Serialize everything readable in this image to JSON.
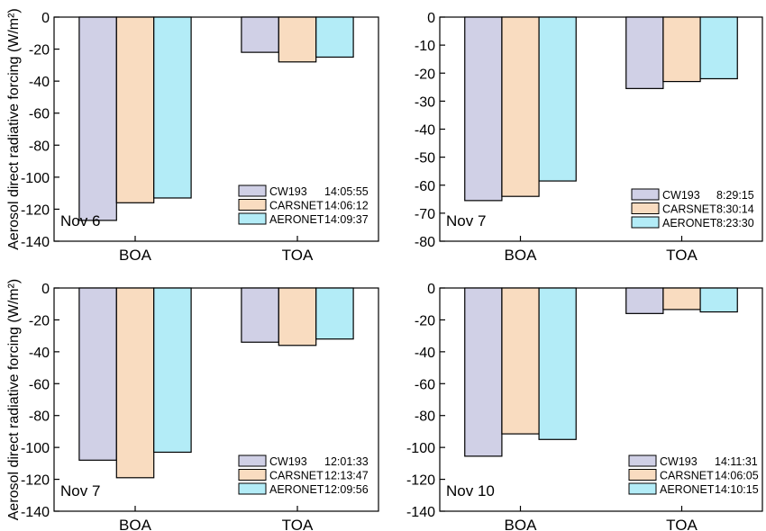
{
  "figure": {
    "ylabel_left_top": "Aerosol direct radiative forcing (W/m²)",
    "ylabel_left_bottom": "Aerosol direct radiative forcing (W/m²)"
  },
  "colors": {
    "CW193": "#d0d0e6",
    "CARSNET": "#f9dcc0",
    "AERONET": "#b3ecf7",
    "edge": "#000000"
  },
  "chart_data": [
    {
      "type": "bar",
      "annotation": "Nov 6",
      "categories": [
        "BOA",
        "TOA"
      ],
      "ylim": [
        -140,
        0
      ],
      "yticks": [
        0,
        -20,
        -40,
        -60,
        -80,
        -100,
        -120,
        -140
      ],
      "ylabel": "Aerosol direct radiative forcing (W/m²)",
      "series": [
        {
          "name": "CW193",
          "time": "14:05:55",
          "values": [
            -127,
            -22
          ]
        },
        {
          "name": "CARSNET",
          "time": "14:06:12",
          "values": [
            -116,
            -28
          ]
        },
        {
          "name": "AERONET",
          "time": "14:09:37",
          "values": [
            -113,
            -25
          ]
        }
      ]
    },
    {
      "type": "bar",
      "annotation": "Nov 7",
      "categories": [
        "BOA",
        "TOA"
      ],
      "ylim": [
        -80,
        0
      ],
      "yticks": [
        0,
        -10,
        -20,
        -30,
        -40,
        -50,
        -60,
        -70,
        -80
      ],
      "ylabel": "",
      "series": [
        {
          "name": "CW193",
          "time": "8:29:15",
          "values": [
            -65.5,
            -25.5
          ]
        },
        {
          "name": "CARSNET",
          "time": "8:30:14",
          "values": [
            -64,
            -23
          ]
        },
        {
          "name": "AERONET",
          "time": "8:23:30",
          "values": [
            -58.5,
            -22
          ]
        }
      ]
    },
    {
      "type": "bar",
      "annotation": "Nov 7",
      "categories": [
        "BOA",
        "TOA"
      ],
      "ylim": [
        -140,
        0
      ],
      "yticks": [
        0,
        -20,
        -40,
        -60,
        -80,
        -100,
        -120,
        -140
      ],
      "ylabel": "Aerosol direct radiative forcing (W/m²)",
      "series": [
        {
          "name": "CW193",
          "time": "12:01:33",
          "values": [
            -108,
            -34
          ]
        },
        {
          "name": "CARSNET",
          "time": "12:13:47",
          "values": [
            -119,
            -36
          ]
        },
        {
          "name": "AERONET",
          "time": "12:09:56",
          "values": [
            -103,
            -32
          ]
        }
      ]
    },
    {
      "type": "bar",
      "annotation": "Nov 10",
      "categories": [
        "BOA",
        "TOA"
      ],
      "ylim": [
        -140,
        0
      ],
      "yticks": [
        0,
        -20,
        -40,
        -60,
        -80,
        -100,
        -120,
        -140
      ],
      "ylabel": "",
      "series": [
        {
          "name": "CW193",
          "time": "14:11:31",
          "values": [
            -105.5,
            -16
          ]
        },
        {
          "name": "CARSNET",
          "time": "14:06:05",
          "values": [
            -91.5,
            -13.5
          ]
        },
        {
          "name": "AERONET",
          "time": "14:10:15",
          "values": [
            -95,
            -15
          ]
        }
      ]
    }
  ]
}
